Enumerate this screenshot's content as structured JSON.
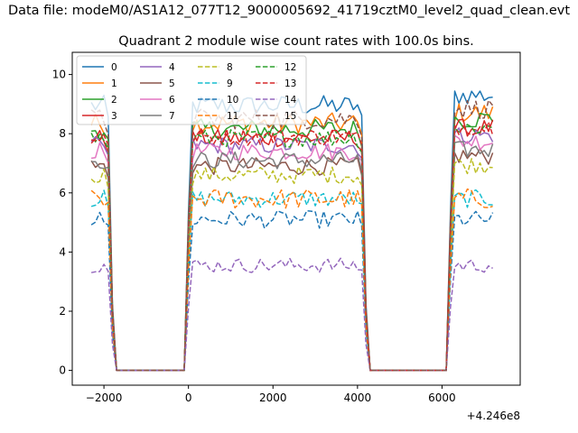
{
  "figure": {
    "suptitle": "Data file: modeM0/AS1A12_077T12_9000005692_41719cztM0_level2_quad_clean.evt"
  },
  "chart_data": {
    "type": "line",
    "title": "Quadrant 2 module wise count rates with 100.0s bins.",
    "xlabel": "",
    "ylabel": "",
    "x_offset_label": "+4.246e8",
    "xlim": [
      -2750,
      7850
    ],
    "ylim": [
      -0.5,
      10.75
    ],
    "xticks": [
      -2000,
      0,
      2000,
      4000,
      6000
    ],
    "xtick_labels": [
      "−2000",
      "0",
      "2000",
      "4000",
      "6000"
    ],
    "yticks": [
      0,
      2,
      4,
      6,
      8,
      10
    ],
    "ytick_labels": [
      "0",
      "2",
      "4",
      "6",
      "8",
      "10"
    ],
    "grid": false,
    "legend_position": "upper-left",
    "legend_ncol": 4,
    "x_segments": [
      {
        "start": -2300,
        "end": -1800
      },
      {
        "start": -1700,
        "end": 0
      },
      {
        "start": 0,
        "end": 4100
      },
      {
        "start": 4200,
        "end": 6100
      },
      {
        "start": 6200,
        "end": 7200
      }
    ],
    "series": [
      {
        "name": "0",
        "color": "#1f77b4",
        "dash": "solid",
        "base": 8.95,
        "amp": 0.35
      },
      {
        "name": "1",
        "color": "#ff7f0e",
        "dash": "solid",
        "base": 8.35,
        "amp": 0.35
      },
      {
        "name": "2",
        "color": "#2ca02c",
        "dash": "solid",
        "base": 8.15,
        "amp": 0.35
      },
      {
        "name": "3",
        "color": "#d62728",
        "dash": "solid",
        "base": 7.85,
        "amp": 0.3
      },
      {
        "name": "4",
        "color": "#9467bd",
        "dash": "solid",
        "base": 7.6,
        "amp": 0.3
      },
      {
        "name": "5",
        "color": "#8c564b",
        "dash": "solid",
        "base": 6.9,
        "amp": 0.3
      },
      {
        "name": "6",
        "color": "#e377c2",
        "dash": "solid",
        "base": 7.4,
        "amp": 0.3
      },
      {
        "name": "7",
        "color": "#7f7f7f",
        "dash": "solid",
        "base": 7.1,
        "amp": 0.3
      },
      {
        "name": "8",
        "color": "#bcbd22",
        "dash": "dashed",
        "base": 6.6,
        "amp": 0.3
      },
      {
        "name": "9",
        "color": "#17becf",
        "dash": "dashed",
        "base": 5.8,
        "amp": 0.3
      },
      {
        "name": "10",
        "color": "#1f77b4",
        "dash": "dashed",
        "base": 5.1,
        "amp": 0.3
      },
      {
        "name": "11",
        "color": "#ff7f0e",
        "dash": "dashed",
        "base": 5.8,
        "amp": 0.35
      },
      {
        "name": "12",
        "color": "#2ca02c",
        "dash": "dashed",
        "base": 7.85,
        "amp": 0.3
      },
      {
        "name": "13",
        "color": "#d62728",
        "dash": "dashed",
        "base": 7.9,
        "amp": 0.3
      },
      {
        "name": "14",
        "color": "#9467bd",
        "dash": "dashed",
        "base": 3.55,
        "amp": 0.25
      },
      {
        "name": "15",
        "color": "#8c564b",
        "dash": "dashed",
        "base": 8.5,
        "amp": 0.35
      }
    ]
  }
}
